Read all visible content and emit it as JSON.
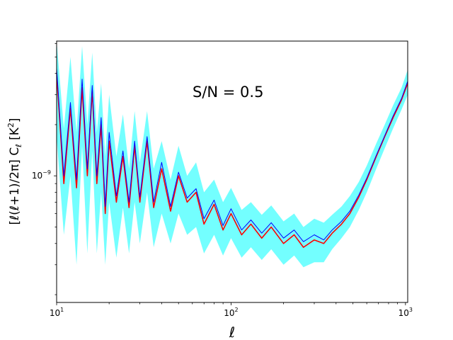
{
  "chart_data": {
    "type": "line",
    "annotation": "S/N = 0.5",
    "xlabel": "ℓ",
    "ylabel": "[ℓ(ℓ+1)/2π] C",
    "ylabel_sub": "ℓ",
    "ylabel_unit": " [K",
    "ylabel_unit_sup": "2",
    "ylabel_unit_close": "]",
    "x_scale": "log",
    "y_scale": "log",
    "xlim": [
      10,
      1030
    ],
    "ylim": [
      1.8e-10,
      6.2e-09
    ],
    "x_major_ticks": [
      10,
      100,
      1000
    ],
    "x_tick_labels": [
      {
        "base": "10",
        "exp": "1"
      },
      {
        "base": "10",
        "exp": "2"
      },
      {
        "base": "10",
        "exp": "3"
      }
    ],
    "y_major_ticks": [
      1e-09
    ],
    "y_tick_labels": [
      {
        "base": "10",
        "exp": "−9"
      }
    ],
    "grid": false,
    "colors": {
      "band": "#00ffff",
      "series_red": "#ff0000",
      "series_blue": "#0000ff"
    },
    "series": [
      {
        "color": "#ff0000",
        "x": [
          10,
          11,
          12,
          13,
          14,
          15,
          16,
          17,
          18,
          19,
          20,
          22,
          24,
          26,
          28,
          30,
          33,
          36,
          40,
          45,
          50,
          56,
          63,
          70,
          80,
          90,
          100,
          115,
          130,
          150,
          170,
          200,
          230,
          260,
          300,
          340,
          380,
          430,
          480,
          540,
          600,
          680,
          760,
          850,
          950,
          1030
        ],
        "values": [
          4e-09,
          9e-10,
          2.5e-09,
          8.5e-10,
          3.3e-09,
          1e-09,
          3.2e-09,
          9e-10,
          2e-09,
          6e-10,
          1.6e-09,
          7e-10,
          1.3e-09,
          6.5e-10,
          1.5e-09,
          7e-10,
          1.6e-09,
          6.5e-10,
          1.1e-09,
          6.2e-10,
          1e-09,
          7e-10,
          8e-10,
          5.2e-10,
          6.8e-10,
          4.8e-10,
          6e-10,
          4.5e-10,
          5.2e-10,
          4.3e-10,
          5e-10,
          4e-10,
          4.5e-10,
          3.8e-10,
          4.2e-10,
          4e-10,
          4.6e-10,
          5.2e-10,
          6e-10,
          7.5e-10,
          9.5e-10,
          1.3e-09,
          1.7e-09,
          2.2e-09,
          2.8e-09,
          3.5e-09
        ]
      },
      {
        "color": "#0000ff",
        "x": [
          10,
          11,
          12,
          13,
          14,
          15,
          16,
          17,
          18,
          19,
          20,
          22,
          24,
          26,
          28,
          30,
          33,
          36,
          40,
          45,
          50,
          56,
          63,
          70,
          80,
          90,
          100,
          115,
          130,
          150,
          170,
          200,
          230,
          260,
          300,
          340,
          380,
          430,
          480,
          540,
          600,
          680,
          760,
          850,
          950,
          1030
        ],
        "values": [
          4.3e-09,
          1e-09,
          2.7e-09,
          9.5e-10,
          3.7e-09,
          1.1e-09,
          3.4e-09,
          1e-09,
          2.2e-09,
          6.6e-10,
          1.8e-09,
          7.6e-10,
          1.4e-09,
          7e-10,
          1.6e-09,
          7.5e-10,
          1.7e-09,
          7e-10,
          1.2e-09,
          6.6e-10,
          1.05e-09,
          7.4e-10,
          8.4e-10,
          5.6e-10,
          7.2e-10,
          5.1e-10,
          6.4e-10,
          4.8e-10,
          5.5e-10,
          4.6e-10,
          5.3e-10,
          4.3e-10,
          4.8e-10,
          4.1e-10,
          4.5e-10,
          4.2e-10,
          4.8e-10,
          5.4e-10,
          6.2e-10,
          7.7e-10,
          9.7e-10,
          1.32e-09,
          1.72e-09,
          2.25e-09,
          2.85e-09,
          3.6e-09
        ]
      }
    ],
    "band": {
      "color": "#00ffff",
      "x": [
        10,
        11,
        12,
        13,
        14,
        15,
        16,
        17,
        18,
        19,
        20,
        22,
        24,
        26,
        28,
        30,
        33,
        36,
        40,
        45,
        50,
        56,
        63,
        70,
        80,
        90,
        100,
        115,
        130,
        150,
        170,
        200,
        230,
        260,
        300,
        340,
        380,
        430,
        480,
        540,
        600,
        680,
        760,
        850,
        950,
        1030
      ],
      "lower": [
        1.7e-09,
        4.5e-10,
        1e-09,
        3e-10,
        1.5e-09,
        3.5e-10,
        1.4e-09,
        3.5e-10,
        8e-10,
        3e-10,
        7e-10,
        3.3e-10,
        6.5e-10,
        3.5e-10,
        7e-10,
        4e-10,
        8e-10,
        3.8e-10,
        6e-10,
        4e-10,
        6e-10,
        4.5e-10,
        5e-10,
        3.5e-10,
        4.5e-10,
        3.4e-10,
        4.3e-10,
        3.3e-10,
        3.8e-10,
        3.2e-10,
        3.7e-10,
        3e-10,
        3.4e-10,
        2.9e-10,
        3.1e-10,
        3.1e-10,
        3.7e-10,
        4.3e-10,
        5e-10,
        6.3e-10,
        8e-10,
        1.1e-09,
        1.45e-09,
        1.9e-09,
        2.45e-09,
        3e-09
      ],
      "upper": [
        6.2e-09,
        1.9e-09,
        5e-09,
        1.8e-09,
        5.8e-09,
        2e-09,
        5.3e-09,
        1.8e-09,
        3.5e-09,
        1.3e-09,
        3e-09,
        1.3e-09,
        2.3e-09,
        1.1e-09,
        2.4e-09,
        1.2e-09,
        2.4e-09,
        1.1e-09,
        1.6e-09,
        9.5e-10,
        1.5e-09,
        1e-09,
        1.2e-09,
        8e-10,
        9.5e-10,
        7e-10,
        8.5e-10,
        6.3e-10,
        7e-10,
        5.9e-10,
        6.7e-10,
        5.4e-10,
        6e-10,
        5e-10,
        5.6e-10,
        5.3e-10,
        5.9e-10,
        6.6e-10,
        7.6e-10,
        9.2e-10,
        1.15e-09,
        1.55e-09,
        2e-09,
        2.6e-09,
        3.3e-09,
        4.2e-09
      ]
    }
  }
}
